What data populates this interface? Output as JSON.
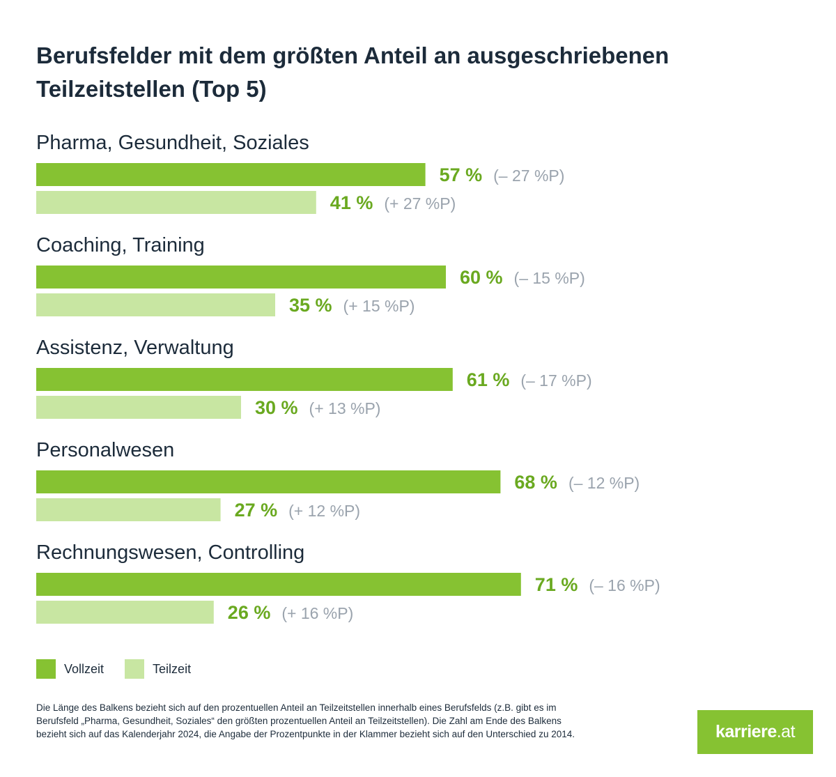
{
  "title": "Berufsfelder mit dem größten Anteil an ausgeschriebenen Teilzeitstellen (Top 5)",
  "colors": {
    "vollzeit": "#86c232",
    "teilzeit": "#c8e6a2",
    "value_text": "#6aa920",
    "change_text": "#9aa3ad",
    "category_text": "#1c2b3a"
  },
  "chart_data": {
    "type": "bar",
    "orientation": "horizontal",
    "title": "Berufsfelder mit dem größten Anteil an ausgeschriebenen Teilzeitstellen (Top 5)",
    "xlim": [
      0,
      100
    ],
    "categories": [
      "Pharma, Gesundheit, Soziales",
      "Coaching, Training",
      "Assistenz, Verwaltung",
      "Personalwesen",
      "Rechnungswesen, Controlling"
    ],
    "series": [
      {
        "name": "Vollzeit",
        "values": [
          57,
          60,
          61,
          68,
          71
        ],
        "labels": [
          "57 %",
          "60 %",
          "61 %",
          "68 %",
          "71 %"
        ],
        "changes": [
          "(– 27 %P)",
          "(– 15 %P)",
          "(– 17 %P)",
          "(– 12 %P)",
          "(– 16 %P)"
        ]
      },
      {
        "name": "Teilzeit",
        "values": [
          41,
          35,
          30,
          27,
          26
        ],
        "labels": [
          "41 %",
          "35 %",
          "30 %",
          "27 %",
          "26 %"
        ],
        "changes": [
          "(+ 27 %P)",
          "(+ 15 %P)",
          "(+ 13 %P)",
          "(+ 12 %P)",
          "(+ 16 %P)"
        ]
      }
    ]
  },
  "legend": {
    "vollzeit_label": "Vollzeit",
    "teilzeit_label": "Teilzeit"
  },
  "footnote": "Die Länge des Balkens bezieht sich auf den prozentuellen Anteil an Teilzeitstellen innerhalb eines Berufsfelds (z.B. gibt es im Berufsfeld „Pharma, Gesundheit, Soziales“ den größten prozentuellen Anteil an Teilzeitstellen). Die Zahl am Ende des Balkens bezieht sich auf das Kalenderjahr 2024, die Angabe der Prozentpunkte in der Klammer bezieht sich auf den Unterschied zu 2014.",
  "logo": {
    "main": "karriere",
    "tld": ".at"
  }
}
